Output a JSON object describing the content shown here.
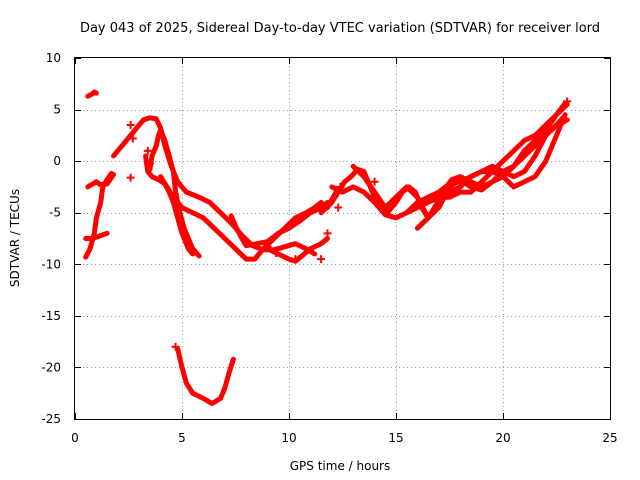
{
  "chart_data": {
    "type": "scatter",
    "title": "Day 043 of 2025, Sidereal Day-to-day VTEC variation (SDTVAR) for receiver lord",
    "xlabel": "GPS time / hours",
    "ylabel": "SDTVAR / TECUs",
    "xlim": [
      0,
      25
    ],
    "ylim": [
      -25,
      10
    ],
    "xticks": [
      0,
      5,
      10,
      15,
      20,
      25
    ],
    "yticks": [
      10,
      5,
      0,
      -5,
      -10,
      -15,
      -20,
      -25
    ],
    "xtick_labels": [
      "0",
      "5",
      "10",
      "15",
      "20",
      "25"
    ],
    "ytick_labels": [
      "10",
      "5",
      "0",
      "-5",
      "-10",
      "-15",
      "-20",
      "-25"
    ],
    "grid": true,
    "marker": "+",
    "color": "#ff0000",
    "series": [
      {
        "name": "arc-1",
        "points": [
          [
            0.6,
            6.3
          ],
          [
            0.7,
            6.4
          ],
          [
            0.8,
            6.5
          ],
          [
            0.9,
            6.7
          ],
          [
            1.0,
            6.6
          ]
        ]
      },
      {
        "name": "arc-2",
        "points": [
          [
            0.5,
            -9.3
          ],
          [
            0.7,
            -8.5
          ],
          [
            0.9,
            -7.0
          ],
          [
            1.0,
            -5.5
          ],
          [
            1.2,
            -4.0
          ],
          [
            1.3,
            -2.5
          ],
          [
            1.5,
            -1.8
          ],
          [
            1.7,
            -1.2
          ],
          [
            1.8,
            -1.3
          ],
          [
            1.5,
            -2.2
          ],
          [
            1.2,
            -2.3
          ],
          [
            1.0,
            -2.0
          ],
          [
            0.6,
            -2.5
          ]
        ]
      },
      {
        "name": "arc-3",
        "points": [
          [
            0.5,
            -7.5
          ],
          [
            0.8,
            -7.5
          ],
          [
            1.1,
            -7.3
          ],
          [
            1.5,
            -7.0
          ]
        ]
      },
      {
        "name": "arc-4",
        "points": [
          [
            1.8,
            0.5
          ],
          [
            2.0,
            1.0
          ],
          [
            2.2,
            1.5
          ],
          [
            2.4,
            2.0
          ],
          [
            2.6,
            2.5
          ],
          [
            2.8,
            3.0
          ],
          [
            3.0,
            3.5
          ],
          [
            3.2,
            4.0
          ],
          [
            3.5,
            4.2
          ],
          [
            3.8,
            4.1
          ],
          [
            4.0,
            3.2
          ],
          [
            4.2,
            1.5
          ],
          [
            4.5,
            -0.5
          ],
          [
            4.8,
            -2.0
          ],
          [
            5.2,
            -3.0
          ],
          [
            5.8,
            -3.5
          ],
          [
            6.3,
            -4.0
          ],
          [
            6.8,
            -5.0
          ],
          [
            7.3,
            -6.0
          ],
          [
            7.8,
            -7.2
          ],
          [
            8.3,
            -8.2
          ],
          [
            8.8,
            -8.6
          ],
          [
            9.3,
            -8.6
          ],
          [
            9.8,
            -8.3
          ],
          [
            10.3,
            -8.0
          ],
          [
            10.8,
            -8.5
          ],
          [
            11.2,
            -9.0
          ]
        ]
      },
      {
        "name": "arc-5",
        "points": [
          [
            3.5,
            -0.8
          ],
          [
            3.6,
            0.5
          ],
          [
            3.8,
            1.5
          ],
          [
            3.9,
            2.5
          ],
          [
            4.0,
            3.0
          ],
          [
            4.2,
            2.0
          ],
          [
            4.4,
            0.5
          ],
          [
            4.6,
            -1.0
          ],
          [
            4.7,
            -3.0
          ],
          [
            4.9,
            -5.0
          ],
          [
            5.1,
            -6.5
          ],
          [
            5.3,
            -7.5
          ],
          [
            5.5,
            -8.5
          ],
          [
            5.8,
            -9.2
          ]
        ]
      },
      {
        "name": "arc-6",
        "points": [
          [
            3.3,
            0.5
          ],
          [
            3.4,
            -1.0
          ],
          [
            3.6,
            -1.5
          ],
          [
            3.9,
            -1.8
          ],
          [
            4.2,
            -2.2
          ],
          [
            4.4,
            -3.0
          ],
          [
            4.6,
            -4.0
          ],
          [
            4.8,
            -5.5
          ],
          [
            5.0,
            -7.0
          ],
          [
            5.3,
            -8.5
          ],
          [
            5.5,
            -9.0
          ]
        ]
      },
      {
        "name": "arc-7",
        "points": [
          [
            4.0,
            -1.5
          ],
          [
            4.3,
            -2.5
          ],
          [
            4.6,
            -3.5
          ],
          [
            5.0,
            -4.5
          ],
          [
            5.5,
            -5.0
          ],
          [
            6.0,
            -5.5
          ],
          [
            6.5,
            -6.5
          ],
          [
            7.0,
            -7.5
          ],
          [
            7.5,
            -8.5
          ],
          [
            8.0,
            -9.5
          ],
          [
            8.4,
            -9.5
          ],
          [
            8.8,
            -8.5
          ],
          [
            9.3,
            -7.5
          ],
          [
            9.8,
            -6.5
          ],
          [
            10.3,
            -5.5
          ],
          [
            10.8,
            -5.0
          ],
          [
            11.2,
            -4.5
          ],
          [
            11.5,
            -4.0
          ],
          [
            11.8,
            -4.5
          ],
          [
            12.2,
            -3.0
          ]
        ]
      },
      {
        "name": "arc-8",
        "points": [
          [
            4.8,
            -18.2
          ],
          [
            5.0,
            -20.0
          ],
          [
            5.2,
            -21.5
          ],
          [
            5.5,
            -22.5
          ],
          [
            6.0,
            -23.0
          ],
          [
            6.4,
            -23.5
          ],
          [
            6.8,
            -23.0
          ],
          [
            7.0,
            -22.0
          ],
          [
            7.2,
            -20.5
          ],
          [
            7.4,
            -19.2
          ]
        ]
      },
      {
        "name": "arc-9",
        "points": [
          [
            7.3,
            -5.3
          ],
          [
            7.5,
            -6.3
          ],
          [
            7.8,
            -7.5
          ],
          [
            8.0,
            -8.2
          ],
          [
            8.5,
            -8.0
          ],
          [
            9.0,
            -7.8
          ],
          [
            9.5,
            -7.0
          ],
          [
            10.0,
            -6.5
          ],
          [
            10.5,
            -5.8
          ],
          [
            11.0,
            -5.0
          ],
          [
            11.5,
            -4.5
          ],
          [
            11.8,
            -4.0
          ]
        ]
      },
      {
        "name": "arc-10",
        "points": [
          [
            9.0,
            -8.5
          ],
          [
            9.5,
            -9.0
          ],
          [
            10.0,
            -9.5
          ],
          [
            10.3,
            -9.7
          ],
          [
            10.6,
            -9.2
          ],
          [
            11.0,
            -8.5
          ],
          [
            11.5,
            -8.0
          ],
          [
            11.8,
            -7.5
          ]
        ]
      },
      {
        "name": "arc-11",
        "points": [
          [
            11.5,
            -5.0
          ],
          [
            12.0,
            -4.0
          ],
          [
            12.3,
            -3.0
          ],
          [
            12.6,
            -2.0
          ],
          [
            12.9,
            -1.5
          ],
          [
            13.2,
            -0.8
          ],
          [
            13.5,
            -1.0
          ],
          [
            13.8,
            -2.5
          ],
          [
            14.0,
            -3.5
          ],
          [
            14.3,
            -4.5
          ],
          [
            14.6,
            -5.0
          ],
          [
            15.0,
            -4.0
          ],
          [
            15.3,
            -3.0
          ],
          [
            15.6,
            -2.5
          ],
          [
            15.9,
            -3.0
          ],
          [
            16.2,
            -4.5
          ],
          [
            16.5,
            -5.5
          ],
          [
            16.8,
            -4.5
          ],
          [
            17.2,
            -3.0
          ],
          [
            17.6,
            -1.8
          ],
          [
            18.0,
            -1.5
          ],
          [
            18.5,
            -2.0
          ],
          [
            19.0,
            -2.5
          ],
          [
            19.5,
            -2.0
          ],
          [
            20.0,
            -1.5
          ],
          [
            20.5,
            -0.5
          ],
          [
            21.0,
            1.0
          ],
          [
            21.5,
            2.0
          ],
          [
            22.0,
            3.0
          ],
          [
            22.5,
            4.5
          ],
          [
            22.9,
            5.6
          ]
        ]
      },
      {
        "name": "arc-12",
        "points": [
          [
            12.0,
            -2.5
          ],
          [
            12.5,
            -3.0
          ],
          [
            13.0,
            -2.5
          ],
          [
            13.5,
            -3.0
          ],
          [
            14.0,
            -4.0
          ],
          [
            14.5,
            -5.2
          ],
          [
            15.0,
            -5.5
          ],
          [
            15.5,
            -5.0
          ],
          [
            16.0,
            -4.5
          ],
          [
            16.5,
            -4.0
          ],
          [
            17.0,
            -3.5
          ],
          [
            17.5,
            -3.5
          ],
          [
            18.0,
            -3.0
          ],
          [
            18.5,
            -3.0
          ],
          [
            19.0,
            -2.0
          ],
          [
            19.5,
            -1.0
          ],
          [
            20.0,
            0.0
          ],
          [
            20.5,
            1.0
          ],
          [
            21.0,
            2.0
          ],
          [
            21.5,
            2.5
          ],
          [
            22.0,
            3.5
          ],
          [
            22.5,
            4.5
          ],
          [
            23.0,
            5.5
          ]
        ]
      },
      {
        "name": "arc-13",
        "points": [
          [
            13.0,
            -0.5
          ],
          [
            13.5,
            -1.5
          ],
          [
            14.0,
            -3.0
          ],
          [
            14.5,
            -4.5
          ],
          [
            15.0,
            -3.5
          ],
          [
            15.5,
            -2.5
          ],
          [
            16.0,
            -3.5
          ],
          [
            16.5,
            -5.5
          ],
          [
            17.0,
            -4.5
          ],
          [
            17.5,
            -2.5
          ],
          [
            18.0,
            -1.8
          ],
          [
            18.5,
            -2.5
          ],
          [
            19.0,
            -2.8
          ],
          [
            19.5,
            -2.0
          ],
          [
            20.0,
            -1.0
          ],
          [
            20.5,
            -0.5
          ],
          [
            21.0,
            0.5
          ],
          [
            21.5,
            1.5
          ],
          [
            22.0,
            2.5
          ],
          [
            22.5,
            3.5
          ],
          [
            23.0,
            4.0
          ]
        ]
      },
      {
        "name": "arc-14",
        "points": [
          [
            15.5,
            -5.0
          ],
          [
            16.0,
            -4.0
          ],
          [
            16.5,
            -3.5
          ],
          [
            17.0,
            -3.0
          ],
          [
            17.5,
            -2.2
          ],
          [
            18.0,
            -2.0
          ],
          [
            18.5,
            -1.5
          ],
          [
            19.0,
            -1.0
          ],
          [
            19.5,
            -1.0
          ],
          [
            20.0,
            -1.5
          ],
          [
            20.5,
            -2.5
          ],
          [
            21.0,
            -2.0
          ],
          [
            21.5,
            -1.5
          ],
          [
            22.0,
            0.0
          ],
          [
            22.5,
            2.5
          ],
          [
            22.9,
            4.5
          ]
        ]
      },
      {
        "name": "arc-15",
        "points": [
          [
            16.0,
            -6.5
          ],
          [
            16.5,
            -5.5
          ],
          [
            17.0,
            -4.0
          ],
          [
            17.5,
            -3.0
          ],
          [
            18.0,
            -2.5
          ],
          [
            18.5,
            -1.5
          ],
          [
            19.0,
            -1.0
          ],
          [
            19.5,
            -0.5
          ],
          [
            20.0,
            -1.0
          ],
          [
            20.5,
            -1.5
          ],
          [
            21.0,
            -1.0
          ],
          [
            21.5,
            0.5
          ],
          [
            22.0,
            2.5
          ],
          [
            22.5,
            3.5
          ],
          [
            22.8,
            4.2
          ]
        ]
      }
    ],
    "scattered_markers": [
      [
        2.6,
        3.5
      ],
      [
        2.6,
        -1.6
      ],
      [
        2.7,
        2.2
      ],
      [
        3.4,
        1.0
      ],
      [
        3.5,
        -0.2
      ],
      [
        4.7,
        -18.0
      ],
      [
        9.4,
        -8.9
      ],
      [
        9.0,
        -8.3
      ],
      [
        10.3,
        -9.5
      ],
      [
        11.5,
        -9.5
      ],
      [
        11.8,
        -7.0
      ],
      [
        12.3,
        -4.5
      ],
      [
        12.4,
        -2.5
      ],
      [
        14.0,
        -2.0
      ],
      [
        22.9,
        4.0
      ],
      [
        23.0,
        5.8
      ]
    ]
  }
}
